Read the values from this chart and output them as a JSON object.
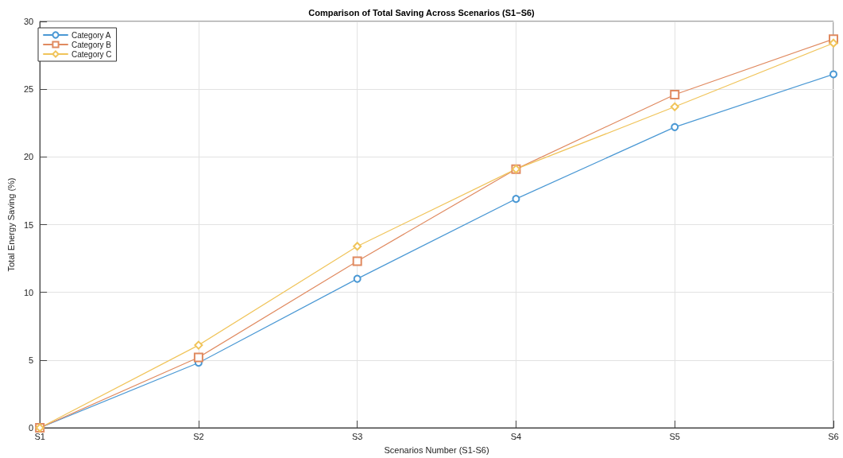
{
  "chart_data": {
    "type": "line",
    "title": "Comparison of Total Saving Across Scenarios (S1−S6)",
    "xlabel": "Scenarios Number (S1-S6)",
    "ylabel": "Total Energy Saving (%)",
    "categories": [
      "S1",
      "S2",
      "S3",
      "S4",
      "S5",
      "S6"
    ],
    "series": [
      {
        "name": "Category A",
        "color": "#4a98d4",
        "marker": "circle",
        "values": [
          0,
          4.8,
          11.0,
          16.9,
          22.2,
          26.1
        ]
      },
      {
        "name": "Category B",
        "color": "#e08a60",
        "marker": "square",
        "values": [
          0,
          5.2,
          12.3,
          19.1,
          24.6,
          28.7
        ]
      },
      {
        "name": "Category C",
        "color": "#f0c45a",
        "marker": "diamond",
        "values": [
          0,
          6.1,
          13.4,
          19.1,
          23.7,
          28.4
        ]
      }
    ],
    "ylim": [
      0,
      30
    ],
    "yticks": [
      0,
      5,
      10,
      15,
      20,
      25,
      30
    ],
    "grid": true,
    "legend": "top left",
    "line_style": "solid"
  }
}
